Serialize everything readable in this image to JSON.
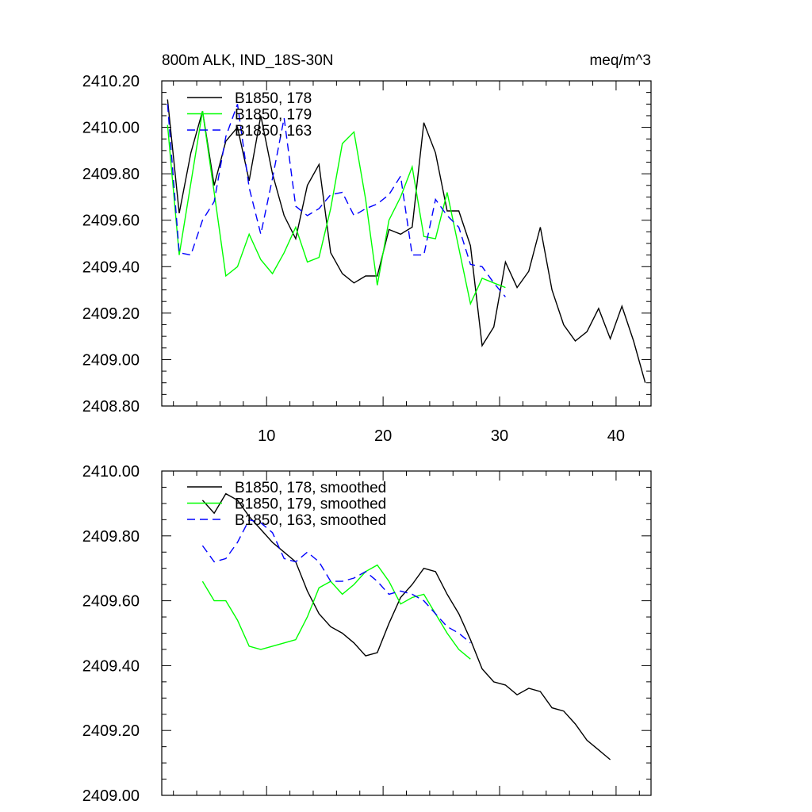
{
  "colors": {
    "black": "#000000",
    "green": "#00ff00",
    "blue": "#0000ff"
  },
  "chart_data": [
    {
      "type": "line",
      "title_left": "800m ALK, IND_18S-30N",
      "title_right": "meq/m^3",
      "xlabel": "",
      "ylabel": "",
      "xlim": [
        1.0,
        43.0
      ],
      "ylim": [
        2408.8,
        2410.2
      ],
      "yticks": [
        2408.8,
        2409.0,
        2409.2,
        2409.4,
        2409.6,
        2409.8,
        2410.0,
        2410.2
      ],
      "ytick_labels": [
        "2408.80",
        "2409.00",
        "2409.20",
        "2409.40",
        "2409.60",
        "2409.80",
        "2410.00",
        "2410.20"
      ],
      "xticks": [
        10,
        20,
        30,
        40
      ],
      "xtick_labels": [
        "10",
        "20",
        "30",
        "40"
      ],
      "series": [
        {
          "name": "B1850, 178",
          "color": "#000000",
          "dash": "",
          "x": [
            1.5,
            2.5,
            3.5,
            4.5,
            5.5,
            6.5,
            7.5,
            8.5,
            9.5,
            10.5,
            11.5,
            12.5,
            13.5,
            14.5,
            15.5,
            16.5,
            17.5,
            18.5,
            19.5,
            20.5,
            21.5,
            22.5,
            23.5,
            24.5,
            25.5,
            26.5,
            27.5,
            28.5,
            29.5,
            30.5,
            31.5,
            32.5,
            33.5,
            34.5,
            35.5,
            36.5,
            37.5,
            38.5,
            39.5,
            40.5,
            41.5,
            42.5
          ],
          "y": [
            2410.12,
            2409.63,
            2409.89,
            2410.07,
            2409.75,
            2409.94,
            2410.0,
            2409.77,
            2410.05,
            2409.8,
            2409.62,
            2409.52,
            2409.75,
            2409.84,
            2409.46,
            2409.37,
            2409.33,
            2409.36,
            2409.36,
            2409.56,
            2409.54,
            2409.57,
            2410.02,
            2409.89,
            2409.64,
            2409.64,
            2409.49,
            2409.06,
            2409.14,
            2409.42,
            2409.31,
            2409.38,
            2409.57,
            2409.3,
            2409.15,
            2409.08,
            2409.12,
            2409.22,
            2409.09,
            2409.23,
            2409.08,
            2408.9
          ]
        },
        {
          "name": "B1850, 179",
          "color": "#00ff00",
          "dash": "",
          "x": [
            1.5,
            2.5,
            3.5,
            4.5,
            5.5,
            6.5,
            7.5,
            8.5,
            9.5,
            10.5,
            11.5,
            12.5,
            13.5,
            14.5,
            15.5,
            16.5,
            17.5,
            18.5,
            19.5,
            20.5,
            21.5,
            22.5,
            23.5,
            24.5,
            25.5,
            26.5,
            27.5,
            28.5,
            29.5,
            30.5
          ],
          "y": [
            2410.01,
            2409.45,
            2409.76,
            2410.07,
            2409.72,
            2409.36,
            2409.4,
            2409.54,
            2409.43,
            2409.37,
            2409.46,
            2409.57,
            2409.42,
            2409.44,
            2409.65,
            2409.93,
            2409.98,
            2409.69,
            2409.32,
            2409.6,
            2409.7,
            2409.83,
            2409.53,
            2409.52,
            2409.72,
            2409.48,
            2409.24,
            2409.35,
            2409.33,
            2409.31
          ]
        },
        {
          "name": "B1850, 163",
          "color": "#0000ff",
          "dash": "10,6",
          "x": [
            1.5,
            2.5,
            3.5,
            4.5,
            5.5,
            6.5,
            7.5,
            8.5,
            9.5,
            10.5,
            11.5,
            12.5,
            13.5,
            14.5,
            15.5,
            16.5,
            17.5,
            18.5,
            19.5,
            20.5,
            21.5,
            22.5,
            23.5,
            24.5,
            25.5,
            26.5,
            27.5,
            28.5,
            29.5,
            30.5
          ],
          "y": [
            2410.1,
            2409.46,
            2409.45,
            2409.6,
            2409.68,
            2409.96,
            2410.1,
            2409.74,
            2409.54,
            2409.78,
            2410.04,
            2409.66,
            2409.62,
            2409.65,
            2409.71,
            2409.72,
            2409.62,
            2409.65,
            2409.67,
            2409.71,
            2409.79,
            2409.45,
            2409.45,
            2409.69,
            2409.62,
            2409.57,
            2409.41,
            2409.4,
            2409.33,
            2409.27
          ]
        }
      ]
    },
    {
      "type": "line",
      "title_left": "",
      "title_right": "",
      "xlabel": "",
      "ylabel": "",
      "xlim": [
        1.0,
        43.0
      ],
      "ylim": [
        2409.0,
        2410.0
      ],
      "yticks": [
        2409.0,
        2409.2,
        2409.4,
        2409.6,
        2409.8,
        2410.0
      ],
      "ytick_labels": [
        "2409.00",
        "2409.20",
        "2409.40",
        "2409.60",
        "2409.80",
        "2410.00"
      ],
      "xticks": [
        10,
        20,
        30,
        40
      ],
      "xtick_labels": [],
      "series": [
        {
          "name": "B1850, 178, smoothed",
          "color": "#000000",
          "dash": "",
          "x": [
            4.5,
            5.5,
            6.5,
            7.5,
            8.5,
            9.5,
            10.5,
            11.5,
            12.5,
            13.5,
            14.5,
            15.5,
            16.5,
            17.5,
            18.5,
            19.5,
            20.5,
            21.5,
            22.5,
            23.5,
            24.5,
            25.5,
            26.5,
            27.5,
            28.5,
            29.5,
            30.5,
            31.5,
            32.5,
            33.5,
            34.5,
            35.5,
            36.5,
            37.5,
            38.5,
            39.5
          ],
          "y": [
            2409.91,
            2409.87,
            2409.93,
            2409.91,
            2409.86,
            2409.82,
            2409.78,
            2409.75,
            2409.72,
            2409.63,
            2409.56,
            2409.52,
            2409.5,
            2409.47,
            2409.43,
            2409.44,
            2409.53,
            2409.61,
            2409.65,
            2409.7,
            2409.69,
            2409.62,
            2409.56,
            2409.48,
            2409.39,
            2409.35,
            2409.34,
            2409.31,
            2409.33,
            2409.32,
            2409.27,
            2409.26,
            2409.22,
            2409.17,
            2409.14,
            2409.11
          ]
        },
        {
          "name": "B1850, 179, smoothed",
          "color": "#00ff00",
          "dash": "",
          "x": [
            4.5,
            5.5,
            6.5,
            7.5,
            8.5,
            9.5,
            10.5,
            11.5,
            12.5,
            13.5,
            14.5,
            15.5,
            16.5,
            17.5,
            18.5,
            19.5,
            20.5,
            21.5,
            22.5,
            23.5,
            24.5,
            25.5,
            26.5,
            27.5
          ],
          "y": [
            2409.66,
            2409.6,
            2409.6,
            2409.54,
            2409.46,
            2409.45,
            2409.46,
            2409.47,
            2409.48,
            2409.55,
            2409.64,
            2409.66,
            2409.62,
            2409.65,
            2409.69,
            2409.71,
            2409.66,
            2409.59,
            2409.61,
            2409.62,
            2409.56,
            2409.5,
            2409.45,
            2409.42
          ]
        },
        {
          "name": "B1850, 163, smoothed",
          "color": "#0000ff",
          "dash": "10,6",
          "x": [
            4.5,
            5.5,
            6.5,
            7.5,
            8.5,
            9.5,
            10.5,
            11.5,
            12.5,
            13.5,
            14.5,
            15.5,
            16.5,
            17.5,
            18.5,
            19.5,
            20.5,
            21.5,
            22.5,
            23.5,
            24.5,
            25.5,
            26.5,
            27.5
          ],
          "y": [
            2409.77,
            2409.72,
            2409.73,
            2409.78,
            2409.85,
            2409.84,
            2409.81,
            2409.73,
            2409.72,
            2409.75,
            2409.72,
            2409.66,
            2409.66,
            2409.67,
            2409.69,
            2409.66,
            2409.62,
            2409.63,
            2409.62,
            2409.6,
            2409.56,
            2409.52,
            2409.5,
            2409.47
          ]
        }
      ]
    }
  ]
}
